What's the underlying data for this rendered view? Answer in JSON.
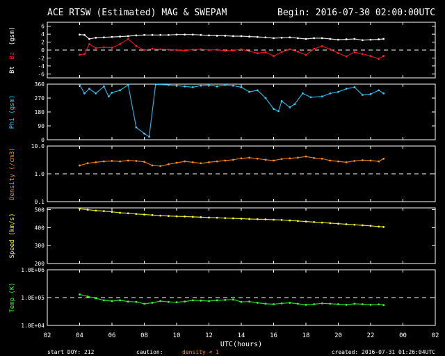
{
  "header": {
    "title": "ACE RTSW (Estimated) MAG & SWEPAM",
    "begin": "Begin: 2016-07-30 02:00:00UTC"
  },
  "footer": {
    "start_doy": "start DOY: 212",
    "caution": "caution:",
    "density_note": "density < 1",
    "created": "created: 2016-07-31 01:26:04UTC"
  },
  "colors": {
    "background": "#000000",
    "axes": "#ffffff",
    "bt": "#ffffff",
    "bz": "#ff1a1a",
    "phi": "#33ccff",
    "density": "#ff8c1a",
    "speed": "#ffff33",
    "temp": "#33ff33"
  },
  "chart_data": [
    {
      "type": "scatter",
      "panel": "mag",
      "ylabel_parts": [
        "Bt",
        "Bz",
        "(gsm)"
      ],
      "yticks": [
        "6",
        "4",
        "2",
        "0",
        "-2",
        "-4",
        "-6"
      ],
      "ylim": [
        -7,
        7
      ],
      "reference_line": 0,
      "x_unit": "UTC hours",
      "series": [
        {
          "name": "Bt",
          "color": "#ffffff",
          "x": [
            4.0,
            4.3,
            4.6,
            5.0,
            5.5,
            6.0,
            6.5,
            7.0,
            7.5,
            8.0,
            8.5,
            9.0,
            9.5,
            10.0,
            10.5,
            11.0,
            11.5,
            12.0,
            12.5,
            13.0,
            13.5,
            14.0,
            14.5,
            15.0,
            15.5,
            16.0,
            16.5,
            17.0,
            17.5,
            18.0,
            18.5,
            19.0,
            19.5,
            20.0,
            20.5,
            21.0,
            21.5,
            22.0,
            22.5,
            22.8
          ],
          "y": [
            3.9,
            3.8,
            2.8,
            3.1,
            3.2,
            3.3,
            3.4,
            3.5,
            3.7,
            3.8,
            3.8,
            3.8,
            3.8,
            3.9,
            3.9,
            3.9,
            3.8,
            3.7,
            3.6,
            3.6,
            3.5,
            3.5,
            3.4,
            3.3,
            3.2,
            3.0,
            3.1,
            3.2,
            3.0,
            2.8,
            3.0,
            3.0,
            2.8,
            2.6,
            2.7,
            2.8,
            2.5,
            2.6,
            2.7,
            2.8
          ]
        },
        {
          "name": "Bz",
          "color": "#ff1a1a",
          "x": [
            4.0,
            4.3,
            4.6,
            5.0,
            5.5,
            6.0,
            6.5,
            7.0,
            7.5,
            8.0,
            8.5,
            9.0,
            9.5,
            10.0,
            10.5,
            11.0,
            11.5,
            12.0,
            12.5,
            13.0,
            13.5,
            14.0,
            14.5,
            15.0,
            15.5,
            16.0,
            16.5,
            17.0,
            17.5,
            18.0,
            18.5,
            19.0,
            19.5,
            20.0,
            20.5,
            21.0,
            21.5,
            22.0,
            22.5,
            22.8
          ],
          "y": [
            -1.2,
            -1.0,
            1.5,
            0.5,
            0.7,
            0.6,
            1.5,
            2.8,
            1.0,
            0.0,
            0.3,
            0.2,
            0.1,
            0.0,
            -0.1,
            0.1,
            0.2,
            0.0,
            0.1,
            -0.2,
            -0.1,
            0.2,
            -0.3,
            -0.8,
            -0.5,
            -1.5,
            -0.5,
            0.2,
            -0.4,
            -1.2,
            0.3,
            1.0,
            0.2,
            -0.8,
            -1.6,
            -0.5,
            -1.0,
            -1.5,
            -2.2,
            -1.5
          ]
        }
      ]
    },
    {
      "type": "scatter",
      "panel": "phi",
      "ylabel": "Phi (gsm)",
      "yticks": [
        "360",
        "270",
        "180",
        "90",
        "0"
      ],
      "ylim": [
        0,
        360
      ],
      "series": [
        {
          "name": "Phi",
          "color": "#33ccff",
          "x": [
            4.0,
            4.3,
            4.6,
            5.0,
            5.5,
            5.8,
            6.0,
            6.5,
            7.0,
            7.5,
            8.0,
            8.3,
            8.7,
            9.5,
            10.0,
            10.5,
            11.0,
            11.5,
            12.0,
            12.5,
            13.0,
            13.5,
            14.0,
            14.5,
            15.0,
            15.5,
            16.0,
            16.3,
            16.5,
            17.0,
            17.3,
            17.8,
            18.3,
            19.0,
            19.5,
            20.0,
            20.5,
            21.0,
            21.5,
            22.0,
            22.5,
            22.8
          ],
          "y": [
            355,
            300,
            330,
            300,
            345,
            280,
            305,
            320,
            355,
            80,
            40,
            20,
            358,
            355,
            350,
            345,
            340,
            350,
            355,
            345,
            355,
            350,
            340,
            310,
            320,
            270,
            200,
            185,
            250,
            210,
            230,
            300,
            275,
            280,
            300,
            310,
            330,
            340,
            290,
            295,
            320,
            300
          ]
        }
      ]
    },
    {
      "type": "scatter",
      "panel": "density",
      "ylabel": "Density (/cm3)",
      "yscale": "log",
      "yticks": [
        "10.0",
        "1.0",
        "0.1"
      ],
      "ylim": [
        0.1,
        10.0
      ],
      "reference_line": 1.0,
      "series": [
        {
          "name": "Density",
          "color": "#ff8c1a",
          "x": [
            4.0,
            4.5,
            5.0,
            5.5,
            6.0,
            6.5,
            7.0,
            7.5,
            8.0,
            8.5,
            9.0,
            9.5,
            10.0,
            10.5,
            11.0,
            11.5,
            12.0,
            12.5,
            13.0,
            13.5,
            14.0,
            14.5,
            15.0,
            15.5,
            16.0,
            16.5,
            17.0,
            17.5,
            18.0,
            18.5,
            19.0,
            19.5,
            20.0,
            20.5,
            21.0,
            21.5,
            22.0,
            22.5,
            22.8
          ],
          "y": [
            2.0,
            2.4,
            2.6,
            2.8,
            2.9,
            2.8,
            3.0,
            2.9,
            2.7,
            2.0,
            1.9,
            2.2,
            2.5,
            2.8,
            2.6,
            2.4,
            2.6,
            2.8,
            3.0,
            3.2,
            3.6,
            3.8,
            3.5,
            3.2,
            3.0,
            3.4,
            3.6,
            3.8,
            4.2,
            3.7,
            3.5,
            3.0,
            2.8,
            2.6,
            2.9,
            3.1,
            3.0,
            2.8,
            3.5
          ]
        }
      ]
    },
    {
      "type": "scatter",
      "panel": "speed",
      "ylabel": "Speed (km/s)",
      "yticks": [
        "500",
        "400",
        "300",
        "200"
      ],
      "ylim": [
        200,
        510
      ],
      "series": [
        {
          "name": "Speed",
          "color": "#ffff33",
          "x": [
            4.0,
            4.5,
            5.0,
            5.5,
            6.0,
            6.5,
            7.0,
            7.5,
            8.0,
            8.5,
            9.0,
            9.5,
            10.0,
            10.5,
            11.0,
            11.5,
            12.0,
            12.5,
            13.0,
            13.5,
            14.0,
            14.5,
            15.0,
            15.5,
            16.0,
            16.5,
            17.0,
            17.5,
            18.0,
            18.5,
            19.0,
            19.5,
            20.0,
            20.5,
            21.0,
            21.5,
            22.0,
            22.5,
            22.8
          ],
          "y": [
            505,
            500,
            495,
            492,
            488,
            483,
            480,
            476,
            473,
            470,
            467,
            465,
            463,
            462,
            460,
            458,
            456,
            455,
            453,
            452,
            450,
            448,
            447,
            446,
            444,
            443,
            440,
            437,
            434,
            431,
            428,
            425,
            422,
            419,
            416,
            413,
            410,
            406,
            404
          ]
        }
      ]
    },
    {
      "type": "scatter",
      "panel": "temp",
      "ylabel": "Temp (K)",
      "yscale": "log",
      "yticks": [
        "1.0E+06",
        "1.0E+05",
        "1.0E+04"
      ],
      "ylim": [
        10000,
        1000000
      ],
      "reference_line": 100000,
      "series": [
        {
          "name": "Temp",
          "color": "#33ff33",
          "x": [
            4.0,
            4.5,
            5.0,
            5.5,
            6.0,
            6.5,
            7.0,
            7.5,
            8.0,
            8.5,
            9.0,
            9.5,
            10.0,
            10.5,
            11.0,
            11.5,
            12.0,
            12.5,
            13.0,
            13.5,
            14.0,
            14.5,
            15.0,
            15.5,
            16.0,
            16.5,
            17.0,
            17.5,
            18.0,
            18.5,
            19.0,
            19.5,
            20.0,
            20.5,
            21.0,
            21.5,
            22.0,
            22.5,
            22.8
          ],
          "y": [
            130000,
            110000,
            95000,
            80000,
            75000,
            80000,
            72000,
            70000,
            60000,
            65000,
            75000,
            70000,
            68000,
            72000,
            80000,
            78000,
            75000,
            80000,
            82000,
            85000,
            70000,
            72000,
            65000,
            60000,
            58000,
            62000,
            65000,
            60000,
            55000,
            58000,
            62000,
            60000,
            58000,
            55000,
            60000,
            58000,
            55000,
            57000,
            54000
          ]
        }
      ]
    }
  ],
  "x_axis": {
    "label": "UTC(hours)",
    "ticks": [
      "02",
      "04",
      "06",
      "08",
      "10",
      "12",
      "14",
      "16",
      "18",
      "20",
      "22",
      "00",
      "02"
    ],
    "range_hours": [
      2,
      26
    ]
  }
}
